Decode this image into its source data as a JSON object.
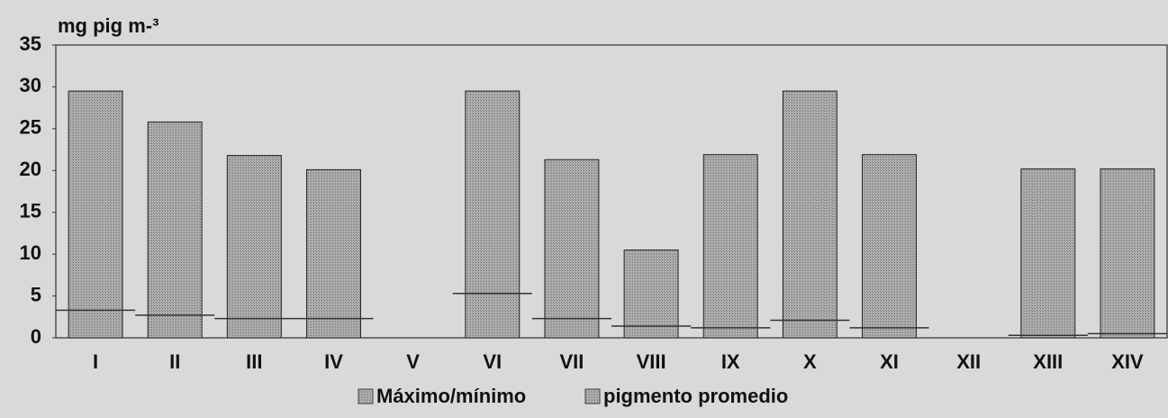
{
  "chart_data": {
    "type": "bar",
    "unit_label": "mg pig m-³",
    "categories": [
      "I",
      "II",
      "III",
      "IV",
      "V",
      "VI",
      "VII",
      "VIII",
      "IX",
      "X",
      "XI",
      "XII",
      "XIII",
      "XIV"
    ],
    "series": [
      {
        "name": "Máximo/mínimo",
        "color": "#a6a6a6",
        "values": [
          29.5,
          25.8,
          21.8,
          20.1,
          null,
          29.5,
          21.3,
          10.5,
          21.9,
          29.5,
          21.9,
          null,
          20.2,
          20.2
        ]
      },
      {
        "name": "pigmento promedio",
        "color": "#333333",
        "values": [
          3.3,
          2.7,
          2.3,
          2.3,
          null,
          5.3,
          2.3,
          1.4,
          1.2,
          2.1,
          1.2,
          null,
          0.3,
          0.5
        ]
      }
    ],
    "ylim": [
      0,
      35
    ],
    "yticks": [
      0,
      5,
      10,
      15,
      20,
      25,
      30,
      35
    ]
  }
}
